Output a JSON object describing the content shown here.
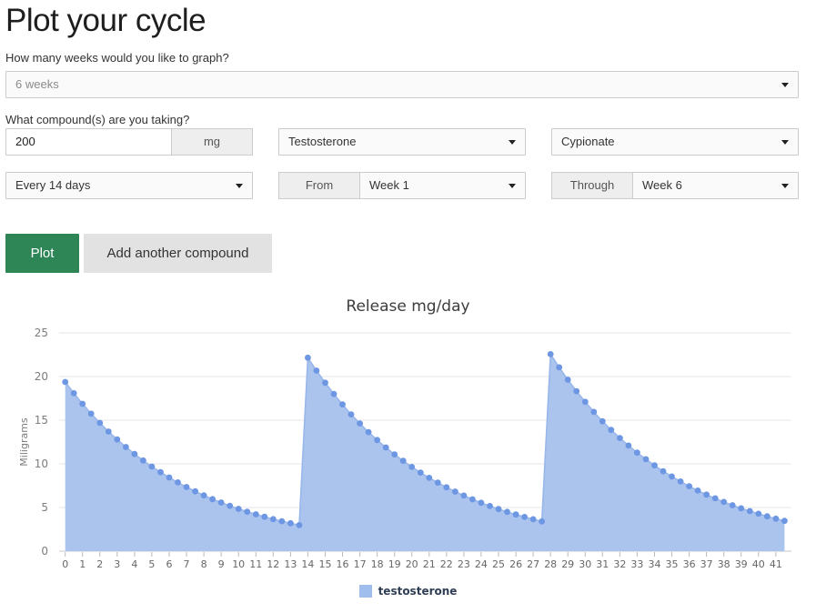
{
  "header": {
    "title": "Plot your cycle"
  },
  "form": {
    "weeks_question": "How many weeks would you like to graph?",
    "weeks_value": "6 weeks",
    "compound_question": "What compound(s) are you taking?",
    "dose_value": "200",
    "dose_unit": "mg",
    "compound_value": "Testosterone",
    "ester_value": "Cypionate",
    "frequency_value": "Every 14 days",
    "from_label": "From",
    "from_value": "Week 1",
    "through_label": "Through",
    "through_value": "Week 6"
  },
  "buttons": {
    "plot": "Plot",
    "add_compound": "Add another compound"
  },
  "colors": {
    "plot_button": "#2e8656",
    "area_fill": "#abc4ee",
    "line": "#96b5e9",
    "dot": "#6d96e3",
    "legend_swatch": "#9fbeee"
  },
  "chart_data": {
    "type": "area",
    "title": "Release mg/day",
    "xlabel": "",
    "ylabel": "Miligrams",
    "ylim": [
      0,
      25
    ],
    "y_ticks": [
      0,
      5,
      10,
      15,
      20,
      25
    ],
    "x_start": 0,
    "x_step": 0.5,
    "x_end": 41.5,
    "x_tick_labels": [
      0,
      1,
      2,
      3,
      4,
      5,
      6,
      7,
      8,
      9,
      10,
      11,
      12,
      13,
      14,
      15,
      16,
      17,
      18,
      19,
      20,
      21,
      22,
      23,
      24,
      25,
      26,
      27,
      28,
      29,
      30,
      31,
      32,
      33,
      34,
      35,
      36,
      37,
      38,
      39,
      40,
      41
    ],
    "grid": true,
    "legend_position": "bottom",
    "legend": [
      {
        "label": "testosterone",
        "color": "#9fbeee"
      }
    ],
    "series": [
      {
        "name": "testosterone",
        "values": [
          19.38,
          18.08,
          16.87,
          15.74,
          14.69,
          13.7,
          12.79,
          11.93,
          11.13,
          10.39,
          9.69,
          9.04,
          8.44,
          7.87,
          7.34,
          6.85,
          6.39,
          5.96,
          5.57,
          5.19,
          4.84,
          4.52,
          4.22,
          3.94,
          3.67,
          3.43,
          3.2,
          2.98,
          22.16,
          20.68,
          19.29,
          18.0,
          16.8,
          15.67,
          14.62,
          13.64,
          12.73,
          11.88,
          11.08,
          10.34,
          9.65,
          9.0,
          8.4,
          7.84,
          7.31,
          6.82,
          6.36,
          5.94,
          5.54,
          5.17,
          4.82,
          4.5,
          4.2,
          3.92,
          3.66,
          3.41,
          22.56,
          21.05,
          19.64,
          18.32,
          17.1,
          15.95,
          14.88,
          13.89,
          12.96,
          12.09,
          11.28,
          10.53,
          9.82,
          9.16,
          8.55,
          7.98,
          7.44,
          6.94,
          6.48,
          6.05,
          5.64,
          5.26,
          4.91,
          4.58,
          4.28,
          3.99,
          3.72,
          3.47
        ]
      }
    ]
  }
}
